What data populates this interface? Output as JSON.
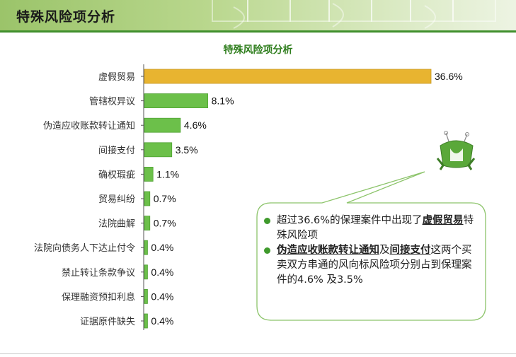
{
  "header": {
    "title": "特殊风险项分析"
  },
  "chart_data": {
    "type": "bar",
    "orientation": "horizontal",
    "title": "特殊风险项分析",
    "categories": [
      "虚假贸易",
      "管辖权异议",
      "伪造应收账款转让通知",
      "间接支付",
      "确权瑕疵",
      "贸易纠纷",
      "法院曲解",
      "法院向债务人下达止付令",
      "禁止转让条款争议",
      "保理融资预扣利息",
      "证据原件缺失"
    ],
    "values": [
      36.6,
      8.1,
      4.6,
      3.5,
      1.1,
      0.7,
      0.7,
      0.4,
      0.4,
      0.4,
      0.4
    ],
    "value_labels": [
      "36.6%",
      "8.1%",
      "4.6%",
      "3.5%",
      "1.1%",
      "0.7%",
      "0.7%",
      "0.4%",
      "0.4%",
      "0.4%",
      "0.4%"
    ],
    "xlim": [
      0,
      36.6
    ],
    "grid": false,
    "colors": {
      "highlight": "#e8b430",
      "default": "#6cc04a",
      "label_text": "#333333"
    }
  },
  "callout": {
    "bullet1": {
      "pre": "超过36.6%的保理案件中出现了",
      "hl": "虚假贸易",
      "post": "特殊风险项"
    },
    "bullet2": {
      "hl1": "伪造应收账款转让通知",
      "mid": "及",
      "hl2": "间接支付",
      "post": "这两个买卖双方串通的风向标风险项分别占到保理案件的4.6% 及3.5%"
    }
  },
  "mascot_icon": "green-mascot-icon"
}
